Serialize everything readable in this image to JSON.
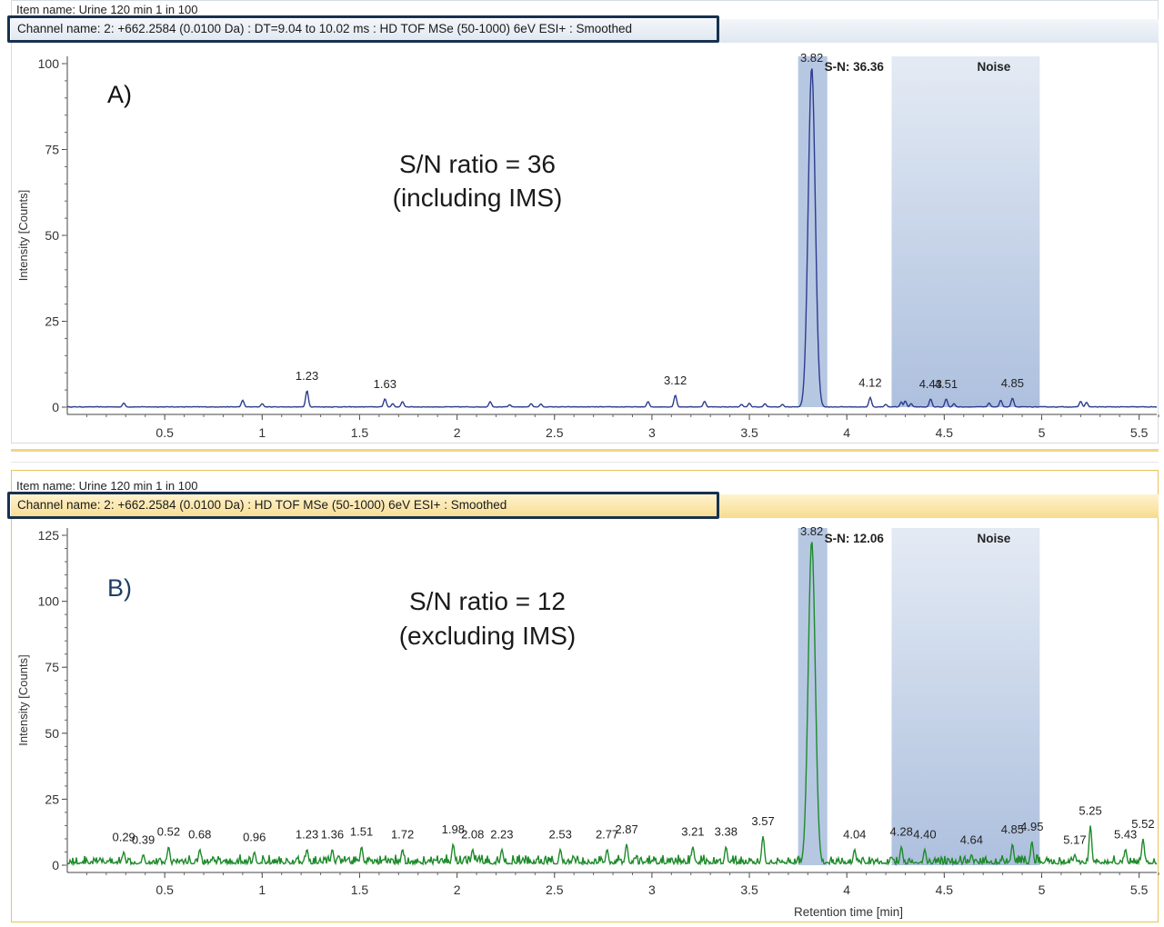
{
  "panels": [
    {
      "item_name": "Item name: Urine 120 min 1 in 100",
      "channel_name": "Channel name: 2: +662.2584 (0.0100 Da) : DT=9.04 to 10.02 ms : HD TOF MSe (50-1000) 6eV ESI+ : Smoothed",
      "panel_label": "A)",
      "annotation_line1": "S/N ratio = 36",
      "annotation_line2": "(including IMS)",
      "sn_label": "S-N: 36.36",
      "noise_label": "Noise",
      "ylabel": "Intensity [Counts]",
      "xlabel": "",
      "line_color": "#2d3c8f",
      "panel_label_color": "#111111",
      "frame_color": "#d6dce4"
    },
    {
      "item_name": "Item name: Urine 120 min 1 in 100",
      "channel_name": "Channel name: 2: +662.2584 (0.0100 Da) : HD TOF MSe (50-1000) 6eV ESI+ : Smoothed",
      "panel_label": "B)",
      "annotation_line1": "S/N ratio = 12",
      "annotation_line2": "(excluding IMS)",
      "sn_label": "S-N: 12.06",
      "noise_label": "Noise",
      "ylabel": "Intensity [Counts]",
      "xlabel": "Retention time [min]",
      "line_color": "#1e8a2a",
      "panel_label_color": "#1f3f66",
      "frame_color": "#e8c45a"
    }
  ],
  "chart_data": [
    {
      "type": "line",
      "title": "",
      "xlabel": "",
      "ylabel": "Intensity [Counts]",
      "xlim": [
        0,
        5.6
      ],
      "ylim": [
        0,
        100
      ],
      "x_ticks": [
        0.5,
        1,
        1.5,
        2,
        2.5,
        3,
        3.5,
        4,
        4.5,
        5,
        5.5
      ],
      "x_tick_labels": [
        "0.5",
        "1",
        "1.5",
        "2",
        "2.5",
        "3",
        "3.5",
        "4",
        "4.5",
        "5",
        "5.5"
      ],
      "y_ticks": [
        0,
        25,
        50,
        75,
        100
      ],
      "y_tick_labels": [
        "0",
        "25",
        "50",
        "75",
        "100"
      ],
      "signal_region": [
        3.75,
        3.9
      ],
      "noise_region": [
        4.23,
        4.99
      ],
      "main_peak": {
        "x": 3.82,
        "y": 99
      },
      "peaks": [
        {
          "x": 0.29,
          "y": 1.2
        },
        {
          "x": 0.9,
          "y": 2
        },
        {
          "x": 1.0,
          "y": 1
        },
        {
          "x": 1.23,
          "y": 4.8
        },
        {
          "x": 1.63,
          "y": 2.4
        },
        {
          "x": 1.67,
          "y": 1
        },
        {
          "x": 1.72,
          "y": 1.6
        },
        {
          "x": 2.17,
          "y": 1.6
        },
        {
          "x": 2.27,
          "y": 0.7
        },
        {
          "x": 2.38,
          "y": 1
        },
        {
          "x": 2.43,
          "y": 0.9
        },
        {
          "x": 2.98,
          "y": 1.6
        },
        {
          "x": 3.12,
          "y": 3.5
        },
        {
          "x": 3.27,
          "y": 1.7
        },
        {
          "x": 3.46,
          "y": 0.8
        },
        {
          "x": 3.5,
          "y": 1.1
        },
        {
          "x": 3.58,
          "y": 1
        },
        {
          "x": 3.67,
          "y": 0.8
        },
        {
          "x": 4.12,
          "y": 2.8
        },
        {
          "x": 4.2,
          "y": 0.8
        },
        {
          "x": 4.28,
          "y": 1.5
        },
        {
          "x": 4.3,
          "y": 1.8
        },
        {
          "x": 4.33,
          "y": 1
        },
        {
          "x": 4.43,
          "y": 2.4
        },
        {
          "x": 4.51,
          "y": 2.4
        },
        {
          "x": 4.55,
          "y": 1
        },
        {
          "x": 4.73,
          "y": 1.2
        },
        {
          "x": 4.79,
          "y": 2
        },
        {
          "x": 4.85,
          "y": 2.6
        },
        {
          "x": 5.2,
          "y": 1.7
        },
        {
          "x": 5.23,
          "y": 1.4
        }
      ],
      "peak_labels": [
        {
          "x": 1.23,
          "text": "1.23"
        },
        {
          "x": 1.63,
          "text": "1.63"
        },
        {
          "x": 3.12,
          "text": "3.12"
        },
        {
          "x": 3.82,
          "text": "3.82"
        },
        {
          "x": 4.12,
          "text": "4.12"
        },
        {
          "x": 4.43,
          "text": "4.43"
        },
        {
          "x": 4.51,
          "text": "4.51"
        },
        {
          "x": 4.85,
          "text": "4.85"
        }
      ],
      "noise_level": 0,
      "grid": false
    },
    {
      "type": "line",
      "title": "",
      "xlabel": "Retention time [min]",
      "ylabel": "Intensity [Counts]",
      "xlim": [
        0,
        5.6
      ],
      "ylim": [
        0,
        125
      ],
      "x_ticks": [
        0.5,
        1,
        1.5,
        2,
        2.5,
        3,
        3.5,
        4,
        4.5,
        5,
        5.5
      ],
      "x_tick_labels": [
        "0.5",
        "1",
        "1.5",
        "2",
        "2.5",
        "3",
        "3.5",
        "4",
        "4.5",
        "5",
        "5.5"
      ],
      "y_ticks": [
        0,
        25,
        50,
        75,
        100,
        125
      ],
      "y_tick_labels": [
        "0",
        "25",
        "50",
        "75",
        "100",
        "125"
      ],
      "signal_region": [
        3.75,
        3.9
      ],
      "noise_region": [
        4.23,
        4.99
      ],
      "main_peak": {
        "x": 3.82,
        "y": 123
      },
      "peaks": [
        {
          "x": 0.29,
          "y": 5
        },
        {
          "x": 0.39,
          "y": 4
        },
        {
          "x": 0.52,
          "y": 7
        },
        {
          "x": 0.68,
          "y": 6
        },
        {
          "x": 0.96,
          "y": 5
        },
        {
          "x": 1.23,
          "y": 6
        },
        {
          "x": 1.36,
          "y": 6
        },
        {
          "x": 1.51,
          "y": 7
        },
        {
          "x": 1.72,
          "y": 6
        },
        {
          "x": 1.98,
          "y": 8
        },
        {
          "x": 2.08,
          "y": 6
        },
        {
          "x": 2.23,
          "y": 6
        },
        {
          "x": 2.53,
          "y": 6
        },
        {
          "x": 2.77,
          "y": 6
        },
        {
          "x": 2.87,
          "y": 8
        },
        {
          "x": 3.21,
          "y": 7
        },
        {
          "x": 3.38,
          "y": 7
        },
        {
          "x": 3.57,
          "y": 11
        },
        {
          "x": 4.04,
          "y": 6
        },
        {
          "x": 4.28,
          "y": 7
        },
        {
          "x": 4.4,
          "y": 6
        },
        {
          "x": 4.64,
          "y": 4
        },
        {
          "x": 4.85,
          "y": 8
        },
        {
          "x": 4.95,
          "y": 9
        },
        {
          "x": 5.17,
          "y": 4
        },
        {
          "x": 5.25,
          "y": 15
        },
        {
          "x": 5.43,
          "y": 6
        },
        {
          "x": 5.52,
          "y": 10
        }
      ],
      "peak_labels": [
        {
          "x": 0.29,
          "text": "0.29"
        },
        {
          "x": 0.39,
          "text": "0.39"
        },
        {
          "x": 0.52,
          "text": "0.52"
        },
        {
          "x": 0.68,
          "text": "0.68"
        },
        {
          "x": 0.96,
          "text": "0.96"
        },
        {
          "x": 1.23,
          "text": "1.23"
        },
        {
          "x": 1.36,
          "text": "1.36"
        },
        {
          "x": 1.51,
          "text": "1.51"
        },
        {
          "x": 1.72,
          "text": "1.72"
        },
        {
          "x": 1.98,
          "text": "1.98"
        },
        {
          "x": 2.08,
          "text": "2.08"
        },
        {
          "x": 2.23,
          "text": "2.23"
        },
        {
          "x": 2.53,
          "text": "2.53"
        },
        {
          "x": 2.77,
          "text": "2.77"
        },
        {
          "x": 2.87,
          "text": "2.87"
        },
        {
          "x": 3.21,
          "text": "3.21"
        },
        {
          "x": 3.38,
          "text": "3.38"
        },
        {
          "x": 3.57,
          "text": "3.57"
        },
        {
          "x": 3.82,
          "text": "3.82"
        },
        {
          "x": 4.04,
          "text": "4.04"
        },
        {
          "x": 4.28,
          "text": "4.28"
        },
        {
          "x": 4.4,
          "text": "4.40"
        },
        {
          "x": 4.64,
          "text": "4.64"
        },
        {
          "x": 4.85,
          "text": "4.85"
        },
        {
          "x": 4.95,
          "text": "4.95"
        },
        {
          "x": 5.17,
          "text": "5.17"
        },
        {
          "x": 5.25,
          "text": "5.25"
        },
        {
          "x": 5.43,
          "text": "5.43"
        },
        {
          "x": 5.52,
          "text": "5.52"
        }
      ],
      "noise_level": 3,
      "grid": false
    }
  ]
}
